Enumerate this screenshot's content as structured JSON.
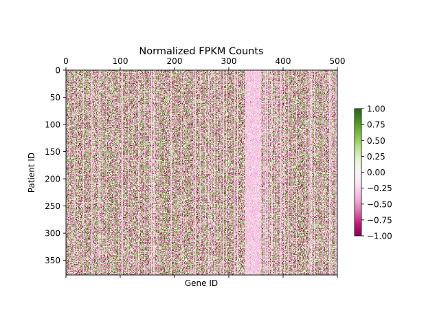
{
  "chart_data": {
    "type": "heatmap",
    "title": "Normalized FPKM Counts",
    "xlabel": "Gene ID",
    "ylabel": "Patient ID",
    "x_range": [
      0,
      500
    ],
    "y_range": [
      0,
      377
    ],
    "x_ticks_top": [
      "0",
      "100",
      "200",
      "300",
      "400",
      "500"
    ],
    "x_tick_values": [
      0,
      100,
      200,
      300,
      400,
      500
    ],
    "y_ticks": [
      "0",
      "50",
      "100",
      "150",
      "200",
      "250",
      "300",
      "350"
    ],
    "y_tick_values": [
      0,
      50,
      100,
      150,
      200,
      250,
      300,
      350
    ],
    "y_inverted": true,
    "value_range": [
      -1.0,
      1.0
    ],
    "colormap": "PiYG",
    "colorbar": {
      "ticks": [
        "1.00",
        "0.75",
        "0.50",
        "0.25",
        "0.00",
        "−0.25",
        "−0.50",
        "−0.75",
        "−1.00"
      ],
      "tick_values": [
        1.0,
        0.75,
        0.5,
        0.25,
        0.0,
        -0.25,
        -0.5,
        -0.75,
        -1.0
      ],
      "colors": [
        "#8e0152",
        "#c51b7d",
        "#de77ae",
        "#f1b6da",
        "#fde0ef",
        "#f7f7f7",
        "#e6f5d0",
        "#b8e186",
        "#7fbc41",
        "#4d9221",
        "#276419"
      ]
    },
    "grid": false
  }
}
